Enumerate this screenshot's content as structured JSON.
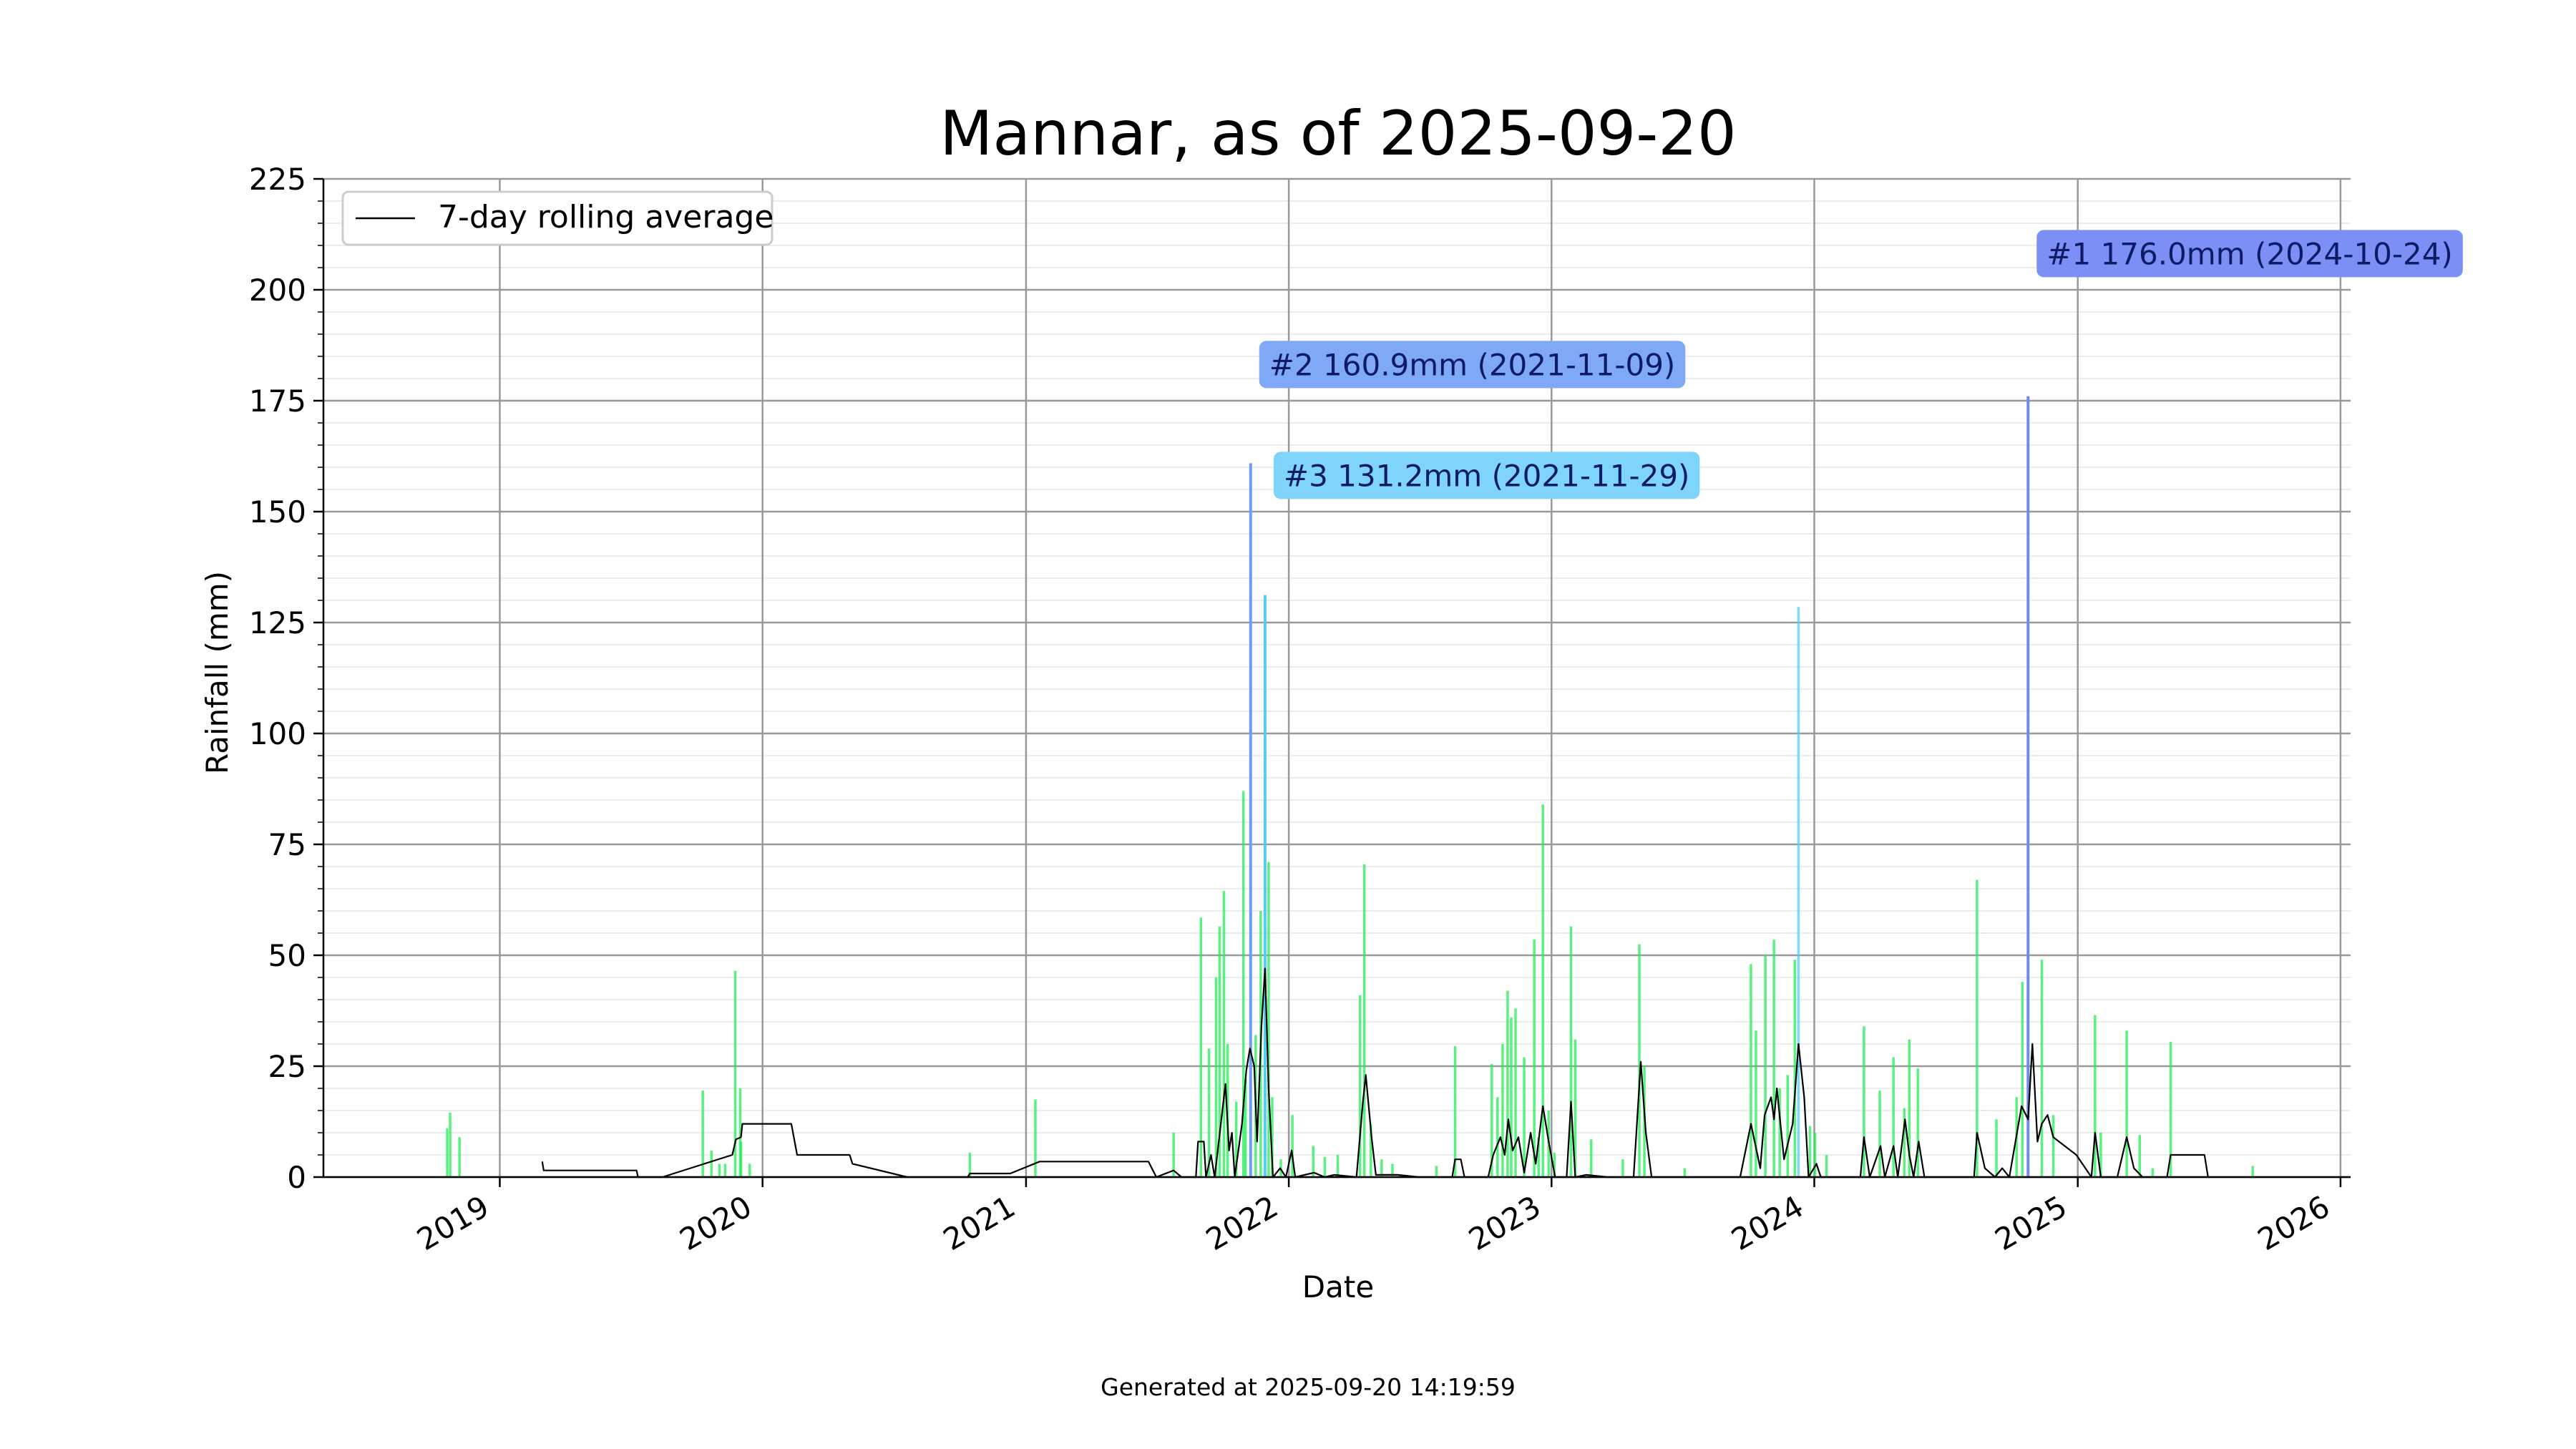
{
  "chart_data": {
    "type": "bar",
    "title": "Mannar, as of 2025-09-20",
    "xlabel": "Date",
    "ylabel": "Rainfall (mm)",
    "footer": "Generated at 2025-09-20 14:19:59",
    "xlim": [
      "2018-05-01",
      "2026-01-15"
    ],
    "ylim": [
      0,
      225
    ],
    "y_major_ticks": [
      0,
      25,
      50,
      75,
      100,
      125,
      150,
      175,
      200,
      225
    ],
    "y_minor_step": 5,
    "x_tick_labels": [
      {
        "date": "2019-01-01",
        "label": "2019"
      },
      {
        "date": "2020-01-01",
        "label": "2020"
      },
      {
        "date": "2021-01-01",
        "label": "2021"
      },
      {
        "date": "2022-01-01",
        "label": "2022"
      },
      {
        "date": "2023-01-01",
        "label": "2023"
      },
      {
        "date": "2024-01-01",
        "label": "2024"
      },
      {
        "date": "2025-01-01",
        "label": "2025"
      },
      {
        "date": "2026-01-01",
        "label": "2026"
      }
    ],
    "grid": true,
    "legend": {
      "position": "top-left",
      "entries": [
        "7-day rolling average"
      ]
    },
    "colors": {
      "bar_default": "#22ee55",
      "bar_top1": "#6f8ae8",
      "bar_top2": "#6f9bf5",
      "bar_top3": "#55ccf0",
      "rolling_line": "#000000",
      "label_top1": "#7b8ff5",
      "label_top2": "#7fa8f7",
      "label_top3": "#7fd4fb",
      "label_text": "#0d1a66"
    },
    "annotations": [
      {
        "rank": "1",
        "text": "#1 176.0mm (2024-10-24)",
        "date": "2024-10-24",
        "value": 176.0,
        "label_y": 208
      },
      {
        "rank": "2",
        "text": "#2 160.9mm (2021-11-09)",
        "date": "2021-11-09",
        "value": 160.9,
        "label_y": 183
      },
      {
        "rank": "3",
        "text": "#3 131.2mm (2021-11-29)",
        "date": "2021-11-29",
        "value": 131.2,
        "label_y": 158
      }
    ],
    "series": [
      {
        "name": "",
        "kind": "daily_rainfall",
        "points": [
          [
            "2018-10-20",
            11
          ],
          [
            "2018-10-24",
            14.5
          ],
          [
            "2018-11-06",
            9
          ],
          [
            "2019-10-10",
            19.5
          ],
          [
            "2019-10-22",
            6
          ],
          [
            "2019-11-02",
            3
          ],
          [
            "2019-11-10",
            3
          ],
          [
            "2019-11-24",
            46.5
          ],
          [
            "2019-12-01",
            20
          ],
          [
            "2019-12-02",
            8
          ],
          [
            "2019-12-14",
            3
          ],
          [
            "2020-10-15",
            5.5
          ],
          [
            "2021-01-14",
            17.5
          ],
          [
            "2021-07-25",
            10
          ],
          [
            "2021-09-01",
            58.5
          ],
          [
            "2021-09-12",
            29
          ],
          [
            "2021-09-22",
            45
          ],
          [
            "2021-09-27",
            56.5
          ],
          [
            "2021-10-03",
            64.5
          ],
          [
            "2021-10-08",
            30
          ],
          [
            "2021-10-20",
            17
          ],
          [
            "2021-10-30",
            87
          ],
          [
            "2021-11-02",
            22
          ],
          [
            "2021-11-09",
            160.9
          ],
          [
            "2021-11-16",
            32
          ],
          [
            "2021-11-23",
            60
          ],
          [
            "2021-11-29",
            131.2
          ],
          [
            "2021-12-04",
            71
          ],
          [
            "2021-12-09",
            18
          ],
          [
            "2021-12-21",
            4
          ],
          [
            "2022-01-06",
            14
          ],
          [
            "2022-02-04",
            7
          ],
          [
            "2022-02-20",
            4.5
          ],
          [
            "2022-03-10",
            5
          ],
          [
            "2022-04-10",
            41
          ],
          [
            "2022-04-16",
            70.5
          ],
          [
            "2022-04-25",
            12
          ],
          [
            "2022-05-10",
            4
          ],
          [
            "2022-05-25",
            3
          ],
          [
            "2022-07-25",
            2.5
          ],
          [
            "2022-08-20",
            29.5
          ],
          [
            "2022-10-10",
            25.5
          ],
          [
            "2022-10-18",
            18
          ],
          [
            "2022-10-25",
            30
          ],
          [
            "2022-11-01",
            42
          ],
          [
            "2022-11-06",
            36
          ],
          [
            "2022-11-12",
            38
          ],
          [
            "2022-11-24",
            27
          ],
          [
            "2022-12-08",
            53.5
          ],
          [
            "2022-12-14",
            9
          ],
          [
            "2022-12-20",
            84
          ],
          [
            "2022-12-28",
            15
          ],
          [
            "2023-01-05",
            5.5
          ],
          [
            "2023-01-28",
            56.5
          ],
          [
            "2023-02-03",
            31
          ],
          [
            "2023-02-25",
            8.5
          ],
          [
            "2023-04-10",
            4
          ],
          [
            "2023-05-03",
            52.5
          ],
          [
            "2023-05-10",
            25
          ],
          [
            "2023-07-05",
            2
          ],
          [
            "2023-10-05",
            48
          ],
          [
            "2023-10-12",
            33
          ],
          [
            "2023-10-25",
            50
          ],
          [
            "2023-11-06",
            53.5
          ],
          [
            "2023-11-14",
            20
          ],
          [
            "2023-11-25",
            23
          ],
          [
            "2023-12-05",
            49
          ],
          [
            "2023-12-10",
            128.5
          ],
          [
            "2023-12-26",
            11.5
          ],
          [
            "2024-01-02",
            10
          ],
          [
            "2024-01-18",
            5
          ],
          [
            "2024-03-10",
            34
          ],
          [
            "2024-04-01",
            19.5
          ],
          [
            "2024-04-20",
            27
          ],
          [
            "2024-05-05",
            15.5
          ],
          [
            "2024-05-12",
            31
          ],
          [
            "2024-05-24",
            24.5
          ],
          [
            "2024-08-14",
            67
          ],
          [
            "2024-09-10",
            13
          ],
          [
            "2024-10-08",
            18
          ],
          [
            "2024-10-16",
            44
          ],
          [
            "2024-10-24",
            176.0
          ],
          [
            "2024-11-12",
            49
          ],
          [
            "2024-11-28",
            14
          ],
          [
            "2025-01-25",
            36.5
          ],
          [
            "2025-02-02",
            10
          ],
          [
            "2025-03-10",
            33
          ],
          [
            "2025-03-28",
            9.5
          ],
          [
            "2025-04-15",
            2
          ],
          [
            "2025-05-10",
            30.5
          ],
          [
            "2025-09-01",
            2.5
          ]
        ]
      },
      {
        "name": "7-day rolling average",
        "kind": "line",
        "points": [
          [
            "2019-03-01",
            3.5
          ],
          [
            "2019-03-03",
            1.5
          ],
          [
            "2019-07-10",
            1.5
          ],
          [
            "2019-07-12",
            0
          ],
          [
            "2019-08-15",
            0
          ],
          [
            "2019-11-20",
            5
          ],
          [
            "2019-11-25",
            8.5
          ],
          [
            "2019-12-02",
            9
          ],
          [
            "2019-12-04",
            12
          ],
          [
            "2020-02-10",
            12
          ],
          [
            "2020-02-18",
            5
          ],
          [
            "2020-05-01",
            5
          ],
          [
            "2020-05-05",
            3
          ],
          [
            "2020-07-20",
            0
          ],
          [
            "2020-10-12",
            0
          ],
          [
            "2020-10-15",
            0.8
          ],
          [
            "2020-12-10",
            0.8
          ],
          [
            "2021-01-20",
            3.5
          ],
          [
            "2021-06-20",
            3.5
          ],
          [
            "2021-07-01",
            0
          ],
          [
            "2021-07-25",
            1.5
          ],
          [
            "2021-08-05",
            0
          ],
          [
            "2021-08-25",
            0
          ],
          [
            "2021-08-28",
            8
          ],
          [
            "2021-09-05",
            8
          ],
          [
            "2021-09-08",
            0
          ],
          [
            "2021-09-15",
            5
          ],
          [
            "2021-09-20",
            0
          ],
          [
            "2021-10-05",
            21
          ],
          [
            "2021-10-10",
            6
          ],
          [
            "2021-10-14",
            10
          ],
          [
            "2021-10-18",
            0
          ],
          [
            "2021-10-28",
            12
          ],
          [
            "2021-11-03",
            24
          ],
          [
            "2021-11-08",
            29
          ],
          [
            "2021-11-14",
            25
          ],
          [
            "2021-11-18",
            8
          ],
          [
            "2021-11-24",
            34
          ],
          [
            "2021-11-29",
            47
          ],
          [
            "2021-12-04",
            20
          ],
          [
            "2021-12-10",
            0
          ],
          [
            "2021-12-20",
            2
          ],
          [
            "2021-12-28",
            0
          ],
          [
            "2022-01-05",
            6
          ],
          [
            "2022-01-10",
            0
          ],
          [
            "2022-02-05",
            1
          ],
          [
            "2022-02-20",
            0
          ],
          [
            "2022-03-05",
            0.5
          ],
          [
            "2022-04-05",
            0
          ],
          [
            "2022-04-14",
            17
          ],
          [
            "2022-04-18",
            23
          ],
          [
            "2022-04-26",
            9
          ],
          [
            "2022-05-02",
            0.5
          ],
          [
            "2022-06-01",
            0.5
          ],
          [
            "2022-07-01",
            0
          ],
          [
            "2022-08-16",
            0
          ],
          [
            "2022-08-20",
            4
          ],
          [
            "2022-08-28",
            4
          ],
          [
            "2022-09-02",
            0
          ],
          [
            "2022-10-05",
            0
          ],
          [
            "2022-10-12",
            5
          ],
          [
            "2022-10-22",
            9
          ],
          [
            "2022-10-28",
            5
          ],
          [
            "2022-11-02",
            13
          ],
          [
            "2022-11-08",
            6
          ],
          [
            "2022-11-16",
            9
          ],
          [
            "2022-11-24",
            1
          ],
          [
            "2022-12-03",
            10
          ],
          [
            "2022-12-10",
            3
          ],
          [
            "2022-12-20",
            16
          ],
          [
            "2022-12-28",
            8
          ],
          [
            "2023-01-06",
            0
          ],
          [
            "2023-01-22",
            0
          ],
          [
            "2023-01-28",
            17
          ],
          [
            "2023-02-03",
            0
          ],
          [
            "2023-02-18",
            0.5
          ],
          [
            "2023-03-20",
            0
          ],
          [
            "2023-04-25",
            0
          ],
          [
            "2023-05-05",
            26
          ],
          [
            "2023-05-12",
            10
          ],
          [
            "2023-05-20",
            0
          ],
          [
            "2023-09-20",
            0
          ],
          [
            "2023-10-05",
            12
          ],
          [
            "2023-10-18",
            2
          ],
          [
            "2023-10-24",
            14
          ],
          [
            "2023-11-02",
            18
          ],
          [
            "2023-11-06",
            13
          ],
          [
            "2023-11-10",
            20
          ],
          [
            "2023-11-20",
            4
          ],
          [
            "2023-12-02",
            12
          ],
          [
            "2023-12-10",
            30
          ],
          [
            "2023-12-18",
            18
          ],
          [
            "2023-12-24",
            0
          ],
          [
            "2024-01-04",
            3
          ],
          [
            "2024-01-10",
            0
          ],
          [
            "2024-03-05",
            0
          ],
          [
            "2024-03-10",
            9
          ],
          [
            "2024-03-18",
            0
          ],
          [
            "2024-04-02",
            7
          ],
          [
            "2024-04-08",
            0
          ],
          [
            "2024-04-20",
            7
          ],
          [
            "2024-04-26",
            0
          ],
          [
            "2024-05-06",
            13
          ],
          [
            "2024-05-12",
            5
          ],
          [
            "2024-05-18",
            0
          ],
          [
            "2024-05-25",
            8
          ],
          [
            "2024-06-02",
            0
          ],
          [
            "2024-08-10",
            0
          ],
          [
            "2024-08-14",
            10
          ],
          [
            "2024-08-25",
            2
          ],
          [
            "2024-09-08",
            0
          ],
          [
            "2024-09-18",
            2
          ],
          [
            "2024-09-28",
            0
          ],
          [
            "2024-10-15",
            16
          ],
          [
            "2024-10-24",
            13
          ],
          [
            "2024-10-30",
            30
          ],
          [
            "2024-11-06",
            8
          ],
          [
            "2024-11-12",
            12
          ],
          [
            "2024-11-20",
            14
          ],
          [
            "2024-11-28",
            9
          ],
          [
            "2024-12-30",
            5
          ],
          [
            "2025-01-20",
            0
          ],
          [
            "2025-01-25",
            10
          ],
          [
            "2025-02-02",
            0
          ],
          [
            "2025-02-25",
            0
          ],
          [
            "2025-03-10",
            9
          ],
          [
            "2025-03-20",
            2
          ],
          [
            "2025-04-01",
            0
          ],
          [
            "2025-05-05",
            0
          ],
          [
            "2025-05-10",
            5
          ],
          [
            "2025-06-26",
            5
          ],
          [
            "2025-07-01",
            0
          ]
        ]
      }
    ]
  }
}
